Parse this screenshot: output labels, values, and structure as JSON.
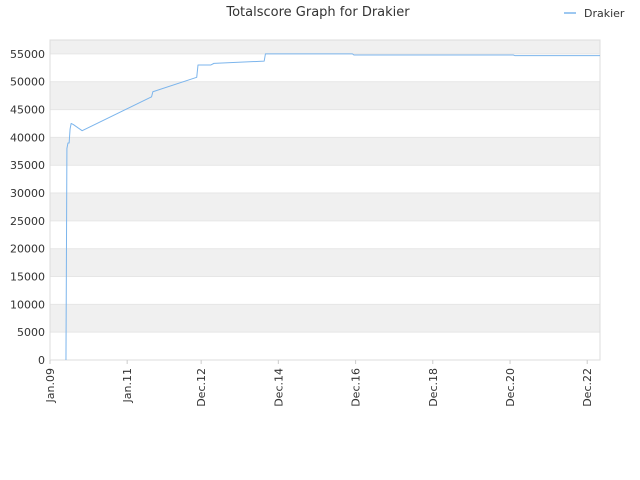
{
  "chart_data": {
    "type": "line",
    "title": "Totalscore Graph for Drakier",
    "xlabel": "",
    "ylabel": "",
    "ylim": [
      0,
      57500
    ],
    "xlim": [
      "2009-01-01",
      "2023-04-01"
    ],
    "y_ticks": [
      "0",
      "5000",
      "10000",
      "15000",
      "20000",
      "25000",
      "30000",
      "35000",
      "40000",
      "45000",
      "50000",
      "55000"
    ],
    "x_ticks": [
      {
        "date": "2009-01-01",
        "label": "Jan.09"
      },
      {
        "date": "2011-01-01",
        "label": "Jan.11"
      },
      {
        "date": "2012-12-01",
        "label": "Dec.12"
      },
      {
        "date": "2014-12-01",
        "label": "Dec.14"
      },
      {
        "date": "2016-12-01",
        "label": "Dec.16"
      },
      {
        "date": "2018-12-01",
        "label": "Dec.18"
      },
      {
        "date": "2020-12-01",
        "label": "Dec.20"
      },
      {
        "date": "2022-12-01",
        "label": "Dec.22"
      }
    ],
    "grid": true,
    "legend_position": "top-right",
    "series": [
      {
        "name": "Drakier",
        "color": "#7cb5ec",
        "points": [
          {
            "x": "2009-06-01",
            "y": 0
          },
          {
            "x": "2009-06-10",
            "y": 38000
          },
          {
            "x": "2009-06-20",
            "y": 39000
          },
          {
            "x": "2009-07-01",
            "y": 39000
          },
          {
            "x": "2009-07-10",
            "y": 41500
          },
          {
            "x": "2009-07-20",
            "y": 42500
          },
          {
            "x": "2009-08-10",
            "y": 42300
          },
          {
            "x": "2009-11-01",
            "y": 41200
          },
          {
            "x": "2011-08-20",
            "y": 47300
          },
          {
            "x": "2011-09-01",
            "y": 48200
          },
          {
            "x": "2012-10-20",
            "y": 50800
          },
          {
            "x": "2012-11-01",
            "y": 53000
          },
          {
            "x": "2013-03-01",
            "y": 53000
          },
          {
            "x": "2013-04-01",
            "y": 53300
          },
          {
            "x": "2014-07-20",
            "y": 53700
          },
          {
            "x": "2014-08-01",
            "y": 55000
          },
          {
            "x": "2016-11-01",
            "y": 55000
          },
          {
            "x": "2016-11-15",
            "y": 54800
          },
          {
            "x": "2021-01-01",
            "y": 54800
          },
          {
            "x": "2021-01-15",
            "y": 54700
          },
          {
            "x": "2023-04-01",
            "y": 54700
          }
        ]
      }
    ]
  }
}
